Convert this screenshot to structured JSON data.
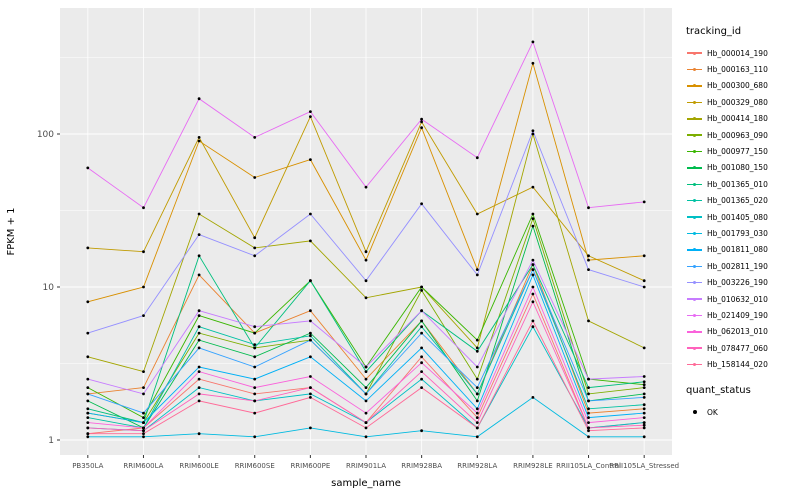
{
  "figure": {
    "background": "#FFFFFF",
    "panel_background": "#EBEBEB",
    "grid_color": "#FFFFFF",
    "tick_color": "#333333",
    "point_color": "#000000"
  },
  "chart_data": {
    "type": "line",
    "title": "",
    "xlabel": "sample_name",
    "ylabel": "FPKM + 1",
    "y_scale": "log10",
    "y_ticks": [
      1,
      10,
      100
    ],
    "ylim": [
      0.8,
      650
    ],
    "grid": true,
    "legend_position": "right",
    "categories": [
      "PB350LA",
      "RRIM600LA",
      "RRIM600LE",
      "RRIM600SE",
      "RRIM600PE",
      "RRIM901LA",
      "RRIM928BA",
      "RRIM928LA",
      "RRIM928LE",
      "RRII105LA_Control",
      "RRII105LA_Stressed"
    ],
    "legend": {
      "color_title": "tracking_id",
      "shape_title": "quant_status",
      "shape_items": [
        {
          "label": "OK",
          "marker": "point",
          "color": "#000000"
        }
      ]
    },
    "series": [
      {
        "name": "Hb_000014_190",
        "color": "#F8766D",
        "values": [
          1.1,
          1.2,
          2.5,
          2.0,
          2.2,
          1.3,
          3.5,
          1.4,
          9,
          1.2,
          1.3
        ]
      },
      {
        "name": "Hb_000163_110",
        "color": "#EA8331",
        "values": [
          2.0,
          2.2,
          12,
          5,
          7,
          2.5,
          6,
          2.0,
          14,
          1.5,
          1.6
        ]
      },
      {
        "name": "Hb_000300_680",
        "color": "#D89000",
        "values": [
          8,
          10,
          90,
          52,
          68,
          15,
          110,
          13,
          290,
          15,
          16
        ]
      },
      {
        "name": "Hb_000329_080",
        "color": "#C09B00",
        "values": [
          18,
          17,
          95,
          21,
          130,
          17,
          120,
          30,
          45,
          16,
          11
        ]
      },
      {
        "name": "Hb_000414_180",
        "color": "#A3A500",
        "values": [
          3.5,
          2.8,
          30,
          18,
          20,
          8.5,
          10,
          4,
          100,
          6,
          4
        ]
      },
      {
        "name": "Hb_000963_090",
        "color": "#7CAE00",
        "values": [
          1.5,
          1.3,
          5,
          4,
          4.5,
          2,
          9.5,
          2.5,
          28,
          2,
          2.2
        ]
      },
      {
        "name": "Hb_000977_150",
        "color": "#39B600",
        "values": [
          2.2,
          1.4,
          6.5,
          5,
          11,
          3,
          10,
          4.5,
          30,
          2.5,
          2.3
        ]
      },
      {
        "name": "Hb_001080_150",
        "color": "#00BB4E",
        "values": [
          1.8,
          1.2,
          4.5,
          3.5,
          5,
          2.2,
          6,
          1.8,
          25,
          1.8,
          2.0
        ]
      },
      {
        "name": "Hb_001365_010",
        "color": "#00BF7D",
        "values": [
          1.6,
          1.3,
          16,
          4,
          11,
          2.8,
          7,
          3.8,
          14,
          2.2,
          2.4
        ]
      },
      {
        "name": "Hb_001365_020",
        "color": "#00C1A3",
        "values": [
          1.4,
          1.2,
          5.5,
          4.2,
          4.8,
          2.0,
          5.5,
          2.0,
          13,
          1.6,
          1.7
        ]
      },
      {
        "name": "Hb_001405_080",
        "color": "#00BFC4",
        "values": [
          1.2,
          1.15,
          2.2,
          1.8,
          2.0,
          1.3,
          2.5,
          1.2,
          5.5,
          1.2,
          1.3
        ]
      },
      {
        "name": "Hb_001793_030",
        "color": "#00BAE0",
        "values": [
          1.05,
          1.05,
          1.1,
          1.05,
          1.2,
          1.05,
          1.15,
          1.05,
          1.9,
          1.05,
          1.05
        ]
      },
      {
        "name": "Hb_001811_080",
        "color": "#00B0F6",
        "values": [
          1.5,
          1.3,
          3.0,
          2.5,
          3.5,
          1.8,
          4,
          1.6,
          12,
          1.4,
          1.5
        ]
      },
      {
        "name": "Hb_002811_190",
        "color": "#35A2FF",
        "values": [
          2.0,
          1.5,
          4.0,
          3.0,
          4.5,
          2.0,
          5,
          2.2,
          13,
          1.8,
          1.9
        ]
      },
      {
        "name": "Hb_003226_190",
        "color": "#9590FF",
        "values": [
          5,
          6.5,
          22,
          16,
          30,
          11,
          35,
          12,
          105,
          13,
          10
        ]
      },
      {
        "name": "Hb_010632_010",
        "color": "#C77CFF",
        "values": [
          2.5,
          2.0,
          7,
          5.5,
          6,
          3,
          7,
          3,
          15,
          2.5,
          2.6
        ]
      },
      {
        "name": "Hb_021409_190",
        "color": "#E76BF3",
        "values": [
          60,
          33,
          170,
          95,
          140,
          45,
          125,
          70,
          400,
          33,
          36
        ]
      },
      {
        "name": "Hb_062013_010",
        "color": "#FA62DB",
        "values": [
          1.3,
          1.2,
          2.8,
          2.2,
          2.6,
          1.5,
          3.2,
          1.5,
          10,
          1.3,
          1.4
        ]
      },
      {
        "name": "Hb_078477_060",
        "color": "#FF62BC",
        "values": [
          1.2,
          1.15,
          2.0,
          1.8,
          2.2,
          1.3,
          2.8,
          1.3,
          8,
          1.2,
          1.25
        ]
      },
      {
        "name": "Hb_158144_020",
        "color": "#FF6A98",
        "values": [
          1.1,
          1.1,
          1.8,
          1.5,
          1.9,
          1.2,
          2.2,
          1.2,
          6,
          1.15,
          1.2
        ]
      }
    ]
  }
}
